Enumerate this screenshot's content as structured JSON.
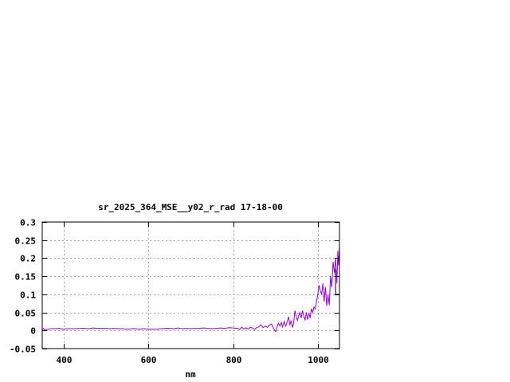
{
  "chart_data": {
    "type": "line",
    "title": "sr_2025_364_MSE__y02_r_rad 17-18-00",
    "xlabel": "nm",
    "ylabel": "",
    "xlim": [
      350,
      1050
    ],
    "ylim": [
      -0.05,
      0.3
    ],
    "xticks": [
      400,
      600,
      800,
      1000
    ],
    "yticks": [
      -0.05,
      0,
      0.05,
      0.1,
      0.15,
      0.2,
      0.25,
      0.3
    ],
    "ytick_labels": [
      "-0.05",
      "0",
      "0.05",
      "0.1",
      "0.15",
      "0.2",
      "0.25",
      "0.3"
    ],
    "grid": true,
    "legend": "none",
    "series": [
      {
        "color": "#000000",
        "points": [
          [
            1040,
            0.17
          ],
          [
            1041,
            0.1
          ],
          [
            1050,
            0.1
          ]
        ]
      },
      {
        "color": "#9400d3",
        "points": [
          [
            350,
            0.002
          ],
          [
            353,
            0.006
          ],
          [
            356,
            0.002
          ],
          [
            360,
            0.003
          ],
          [
            365,
            0.004
          ],
          [
            370,
            0.005
          ],
          [
            380,
            0.005
          ],
          [
            390,
            0.006
          ],
          [
            400,
            0.004
          ],
          [
            410,
            0.005
          ],
          [
            420,
            0.005
          ],
          [
            430,
            0.005
          ],
          [
            440,
            0.006
          ],
          [
            450,
            0.006
          ],
          [
            460,
            0.005
          ],
          [
            470,
            0.007
          ],
          [
            480,
            0.006
          ],
          [
            490,
            0.006
          ],
          [
            500,
            0.006
          ],
          [
            510,
            0.005
          ],
          [
            520,
            0.006
          ],
          [
            530,
            0.005
          ],
          [
            540,
            0.005
          ],
          [
            550,
            0.004
          ],
          [
            560,
            0.005
          ],
          [
            570,
            0.005
          ],
          [
            580,
            0.004
          ],
          [
            590,
            0.005
          ],
          [
            600,
            0.004
          ],
          [
            610,
            0.004
          ],
          [
            620,
            0.004
          ],
          [
            630,
            0.005
          ],
          [
            640,
            0.006
          ],
          [
            650,
            0.006
          ],
          [
            660,
            0.005
          ],
          [
            670,
            0.007
          ],
          [
            680,
            0.005
          ],
          [
            690,
            0.006
          ],
          [
            700,
            0.005
          ],
          [
            710,
            0.006
          ],
          [
            720,
            0.006
          ],
          [
            730,
            0.007
          ],
          [
            740,
            0.006
          ],
          [
            750,
            0.005
          ],
          [
            760,
            0.006
          ],
          [
            770,
            0.007
          ],
          [
            780,
            0.006
          ],
          [
            790,
            0.008
          ],
          [
            800,
            0.007
          ],
          [
            810,
            0.006
          ],
          [
            815,
            0.003
          ],
          [
            820,
            0.009
          ],
          [
            825,
            0.004
          ],
          [
            830,
            0.008
          ],
          [
            835,
            0.004
          ],
          [
            840,
            0.009
          ],
          [
            845,
            0.007
          ],
          [
            850,
            0.003
          ],
          [
            855,
            0.008
          ],
          [
            860,
            0.01
          ],
          [
            865,
            0.016
          ],
          [
            870,
            0.008
          ],
          [
            875,
            0.012
          ],
          [
            880,
            0.009
          ],
          [
            885,
            0.015
          ],
          [
            890,
            0.018
          ],
          [
            895,
            0.005
          ],
          [
            900,
            -0.003
          ],
          [
            903,
            0.01
          ],
          [
            906,
            0.02
          ],
          [
            910,
            0.012
          ],
          [
            913,
            0.022
          ],
          [
            916,
            0.01
          ],
          [
            920,
            0.025
          ],
          [
            923,
            0.012
          ],
          [
            926,
            0.02
          ],
          [
            930,
            0.038
          ],
          [
            933,
            0.015
          ],
          [
            936,
            0.028
          ],
          [
            939,
            0.008
          ],
          [
            942,
            0.02
          ],
          [
            945,
            0.055
          ],
          [
            948,
            0.04
          ],
          [
            951,
            0.028
          ],
          [
            954,
            0.04
          ],
          [
            957,
            0.05
          ],
          [
            960,
            0.035
          ],
          [
            963,
            0.055
          ],
          [
            966,
            0.04
          ],
          [
            969,
            0.028
          ],
          [
            972,
            0.05
          ],
          [
            975,
            0.03
          ],
          [
            978,
            0.048
          ],
          [
            981,
            0.035
          ],
          [
            984,
            0.06
          ],
          [
            987,
            0.05
          ],
          [
            990,
            0.065
          ],
          [
            993,
            0.06
          ],
          [
            996,
            0.08
          ],
          [
            999,
            0.1
          ],
          [
            1002,
            0.125
          ],
          [
            1005,
            0.11
          ],
          [
            1008,
            0.1
          ],
          [
            1011,
            0.13
          ],
          [
            1014,
            0.08
          ],
          [
            1017,
            0.12
          ],
          [
            1020,
            0.068
          ],
          [
            1023,
            0.1
          ],
          [
            1026,
            0.07
          ],
          [
            1029,
            0.15
          ],
          [
            1032,
            0.12
          ],
          [
            1035,
            0.19
          ],
          [
            1038,
            0.16
          ],
          [
            1041,
            0.2
          ],
          [
            1044,
            0.13
          ],
          [
            1046,
            0.22
          ],
          [
            1048,
            0.18
          ],
          [
            1050,
            0.235
          ]
        ]
      }
    ]
  }
}
